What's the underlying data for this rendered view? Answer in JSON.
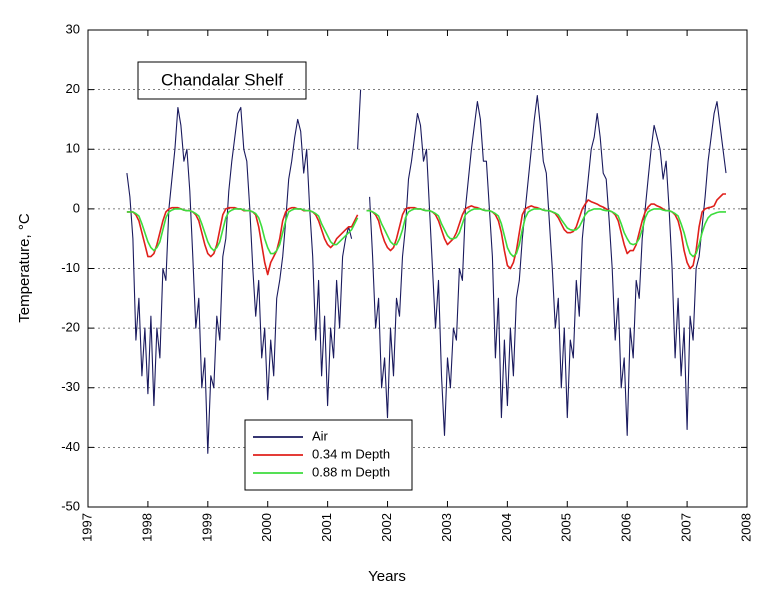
{
  "chart_data": {
    "type": "line",
    "title": "Chandalar Shelf",
    "xlabel": "Years",
    "ylabel": "Temperature, °C",
    "xlim": [
      1997,
      2008
    ],
    "xticks": [
      1997,
      1998,
      1999,
      2000,
      2001,
      2002,
      2003,
      2004,
      2005,
      2006,
      2007,
      2008
    ],
    "ylim": [
      -50,
      30
    ],
    "yticks": [
      -50,
      -40,
      -30,
      -20,
      -10,
      0,
      10,
      20,
      30
    ],
    "grid": true,
    "legend": "bottom-center",
    "x": [
      1997.65,
      1997.7,
      1997.75,
      1997.8,
      1997.85,
      1997.9,
      1997.95,
      1998,
      1998.05,
      1998.1,
      1998.15,
      1998.2,
      1998.25,
      1998.3,
      1998.35,
      1998.4,
      1998.45,
      1998.5,
      1998.55,
      1998.6,
      1998.65,
      1998.7,
      1998.75,
      1998.8,
      1998.85,
      1998.9,
      1998.95,
      1999,
      1999.05,
      1999.1,
      1999.15,
      1999.2,
      1999.25,
      1999.3,
      1999.35,
      1999.4,
      1999.45,
      1999.5,
      1999.55,
      1999.6,
      1999.65,
      1999.7,
      1999.75,
      1999.8,
      1999.85,
      1999.9,
      1999.95,
      2000,
      2000.05,
      2000.1,
      2000.15,
      2000.2,
      2000.25,
      2000.3,
      2000.35,
      2000.4,
      2000.45,
      2000.5,
      2000.55,
      2000.6,
      2000.65,
      2000.7,
      2000.75,
      2000.8,
      2000.85,
      2000.9,
      2000.95,
      2001,
      2001.05,
      2001.1,
      2001.15,
      2001.2,
      2001.25,
      2001.3,
      2001.35,
      2001.4,
      2001.45,
      2001.5,
      2001.55,
      2001.6,
      2001.65,
      2001.7,
      2001.75,
      2001.8,
      2001.85,
      2001.9,
      2001.95,
      2002,
      2002.05,
      2002.1,
      2002.15,
      2002.2,
      2002.25,
      2002.3,
      2002.35,
      2002.4,
      2002.45,
      2002.5,
      2002.55,
      2002.6,
      2002.65,
      2002.7,
      2002.75,
      2002.8,
      2002.85,
      2002.9,
      2002.95,
      2003,
      2003.05,
      2003.1,
      2003.15,
      2003.2,
      2003.25,
      2003.3,
      2003.35,
      2003.4,
      2003.45,
      2003.5,
      2003.55,
      2003.6,
      2003.65,
      2003.7,
      2003.75,
      2003.8,
      2003.85,
      2003.9,
      2003.95,
      2004,
      2004.05,
      2004.1,
      2004.15,
      2004.2,
      2004.25,
      2004.3,
      2004.35,
      2004.4,
      2004.45,
      2004.5,
      2004.55,
      2004.6,
      2004.65,
      2004.7,
      2004.75,
      2004.8,
      2004.85,
      2004.9,
      2004.95,
      2005,
      2005.05,
      2005.1,
      2005.15,
      2005.2,
      2005.25,
      2005.3,
      2005.35,
      2005.4,
      2005.45,
      2005.5,
      2005.55,
      2005.6,
      2005.65,
      2005.7,
      2005.75,
      2005.8,
      2005.85,
      2005.9,
      2005.95,
      2006,
      2006.05,
      2006.1,
      2006.15,
      2006.2,
      2006.25,
      2006.3,
      2006.35,
      2006.4,
      2006.45,
      2006.5,
      2006.55,
      2006.6,
      2006.65,
      2006.7,
      2006.75,
      2006.8,
      2006.85,
      2006.9,
      2006.95,
      2007,
      2007.05,
      2007.1,
      2007.15,
      2007.2,
      2007.25,
      2007.3,
      2007.35,
      2007.4,
      2007.45,
      2007.5,
      2007.55,
      2007.6,
      2007.65
    ],
    "series": [
      {
        "name": "Air",
        "color": "#1a1a5e",
        "values": [
          6,
          2,
          -5,
          -22,
          -15,
          -28,
          -20,
          -31,
          -18,
          -33,
          -20,
          -25,
          -10,
          -12,
          0,
          5,
          10,
          17,
          14,
          8,
          10,
          3,
          -8,
          -20,
          -15,
          -30,
          -25,
          -41,
          -28,
          -30,
          -18,
          -22,
          -8,
          -5,
          3,
          8,
          12,
          16,
          17,
          10,
          8,
          0,
          -10,
          -18,
          -12,
          -25,
          -20,
          -32,
          -22,
          -28,
          -15,
          -12,
          -8,
          -2,
          5,
          8,
          12,
          15,
          13,
          6,
          10,
          0,
          -8,
          -22,
          -12,
          -28,
          -18,
          -33,
          -20,
          -25,
          -12,
          -20,
          -8,
          -5,
          -3,
          -5,
          null,
          10,
          20,
          null,
          null,
          2,
          -8,
          -20,
          -15,
          -30,
          -25,
          -35,
          -20,
          -28,
          -15,
          -18,
          -8,
          -3,
          5,
          8,
          12,
          16,
          14,
          8,
          10,
          0,
          -10,
          -20,
          -12,
          -28,
          -38,
          -25,
          -30,
          -20,
          -22,
          -10,
          -12,
          0,
          5,
          10,
          14,
          18,
          15,
          8,
          8,
          0,
          -8,
          -25,
          -15,
          -35,
          -22,
          -33,
          -20,
          -28,
          -15,
          -12,
          -5,
          0,
          5,
          10,
          15,
          19,
          14,
          8,
          6,
          -2,
          -10,
          -20,
          -15,
          -30,
          -20,
          -35,
          -22,
          -25,
          -12,
          -18,
          -5,
          0,
          5,
          10,
          12,
          16,
          12,
          6,
          5,
          -2,
          -10,
          -22,
          -15,
          -30,
          -25,
          -38,
          -20,
          -25,
          -12,
          -15,
          -5,
          0,
          5,
          10,
          14,
          12,
          10,
          5,
          8,
          0,
          -10,
          -25,
          -15,
          -28,
          -20,
          -37,
          -18,
          -22,
          -10,
          -8,
          -3,
          2,
          8,
          12,
          16,
          18,
          14,
          10,
          6
        ]
      },
      {
        "name": "0.34 m Depth",
        "color": "#e0201b",
        "values": [
          -0.5,
          -0.5,
          -0.5,
          -1,
          -2,
          -4,
          -6,
          -8,
          -8,
          -7.5,
          -6,
          -4,
          -2,
          -0.5,
          0,
          0.2,
          0.2,
          0.2,
          0,
          -0.2,
          -0.3,
          -0.3,
          -0.5,
          -1,
          -2,
          -4,
          -6,
          -7.5,
          -8,
          -7.5,
          -6,
          -3.5,
          -1,
          0,
          0.2,
          0.2,
          0.2,
          0,
          0,
          -0.3,
          -0.3,
          -0.3,
          -0.5,
          -1,
          -3,
          -6,
          -9,
          -11,
          -9,
          -8,
          -7,
          -5,
          -2,
          -0.5,
          0,
          0.2,
          0.2,
          0,
          0,
          -0.3,
          -0.3,
          -0.3,
          -0.5,
          -1,
          -2,
          -3.5,
          -5,
          -6,
          -6.5,
          -6,
          -5,
          -4.5,
          -4,
          -3.5,
          -3,
          -3,
          -2,
          -1,
          null,
          null,
          -0.3,
          -0.3,
          -0.5,
          -1,
          -2,
          -4,
          -5.5,
          -6.5,
          -7,
          -6.5,
          -5,
          -3,
          -1,
          0,
          0.2,
          0.2,
          0.2,
          0,
          0,
          -0.2,
          -0.3,
          -0.3,
          -0.5,
          -1,
          -2,
          -3.5,
          -5,
          -6,
          -5.5,
          -5,
          -4,
          -2.5,
          -1,
          0,
          0.3,
          0.5,
          0.3,
          0.2,
          0,
          -0.2,
          -0.3,
          -0.3,
          -0.5,
          -1,
          -2,
          -4,
          -7,
          -9.5,
          -10,
          -9,
          -7,
          -4,
          -1,
          0,
          0.3,
          0.5,
          0.3,
          0.2,
          0,
          -0.2,
          -0.3,
          -0.3,
          -0.5,
          -0.8,
          -1.5,
          -2.5,
          -3.5,
          -4,
          -4,
          -3.8,
          -3,
          -1.5,
          0,
          0.8,
          1.5,
          1.2,
          1,
          0.8,
          0.5,
          0.3,
          0,
          -0.3,
          -0.5,
          -1,
          -2,
          -4,
          -6,
          -7.5,
          -7,
          -7,
          -6,
          -4,
          -2,
          -0.5,
          0.3,
          0.8,
          0.8,
          0.5,
          0.3,
          0,
          -0.3,
          -0.3,
          -0.5,
          -1,
          -2,
          -4,
          -7,
          -9,
          -10,
          -9.5,
          -7,
          -3,
          -0.5,
          0,
          0.2,
          0.3,
          0.5,
          1.5,
          2,
          2.5,
          2.5
        ]
      },
      {
        "name": "0.88 m Depth",
        "color": "#3ddc3d",
        "values": [
          -0.5,
          -0.5,
          -0.5,
          -0.8,
          -1.2,
          -2.5,
          -4,
          -5.5,
          -6.5,
          -7,
          -6.5,
          -5.5,
          -3.5,
          -1.5,
          -0.5,
          -0.2,
          0,
          0,
          0,
          -0.2,
          -0.3,
          -0.3,
          -0.5,
          -0.8,
          -1.2,
          -2.5,
          -4,
          -5.5,
          -6.5,
          -7,
          -6.5,
          -5.5,
          -3.5,
          -1.5,
          -0.5,
          -0.2,
          0,
          0,
          0,
          -0.2,
          -0.3,
          -0.3,
          -0.5,
          -0.8,
          -1.5,
          -3,
          -5,
          -6.5,
          -7.5,
          -7.5,
          -7,
          -6,
          -4,
          -2,
          -0.5,
          -0.2,
          0,
          0,
          0,
          -0.2,
          -0.3,
          -0.3,
          -0.5,
          -0.8,
          -1.2,
          -2.5,
          -3.5,
          -4.5,
          -5.5,
          -6,
          -6,
          -5.5,
          -5,
          -4.5,
          -4,
          -3.5,
          -2.5,
          -1.5,
          null,
          null,
          -0.3,
          -0.3,
          -0.5,
          -0.8,
          -1.2,
          -2.5,
          -3.5,
          -4.5,
          -5.5,
          -6,
          -6,
          -5,
          -3.5,
          -1.5,
          -0.5,
          -0.2,
          0,
          0,
          0,
          -0.2,
          -0.3,
          -0.3,
          -0.5,
          -0.8,
          -1.2,
          -2.5,
          -3.5,
          -4.5,
          -5,
          -5,
          -4.8,
          -4,
          -2.5,
          -1,
          -0.5,
          -0.2,
          0,
          0,
          0,
          -0.2,
          -0.3,
          -0.3,
          -0.5,
          -0.8,
          -1.2,
          -2.5,
          -4.5,
          -6.5,
          -7.5,
          -8,
          -7.5,
          -6,
          -3.5,
          -1.5,
          -0.5,
          -0.2,
          0,
          0,
          0,
          -0.2,
          -0.3,
          -0.3,
          -0.5,
          -0.7,
          -1,
          -1.8,
          -2.5,
          -3.2,
          -3.5,
          -3.6,
          -3.5,
          -3,
          -2,
          -1,
          -0.4,
          -0.2,
          0,
          0,
          0,
          -0.2,
          -0.3,
          -0.3,
          -0.5,
          -0.8,
          -1.2,
          -2.5,
          -4,
          -5,
          -5.8,
          -6,
          -5.8,
          -5,
          -3.5,
          -1.5,
          -0.5,
          -0.2,
          0,
          0,
          0,
          -0.2,
          -0.3,
          -0.3,
          -0.5,
          -0.8,
          -1.2,
          -2.5,
          -4,
          -6,
          -7.5,
          -8,
          -7.5,
          -6,
          -4,
          -2.5,
          -1.5,
          -1,
          -0.8,
          -0.6,
          -0.5,
          -0.5,
          -0.5
        ]
      }
    ]
  }
}
